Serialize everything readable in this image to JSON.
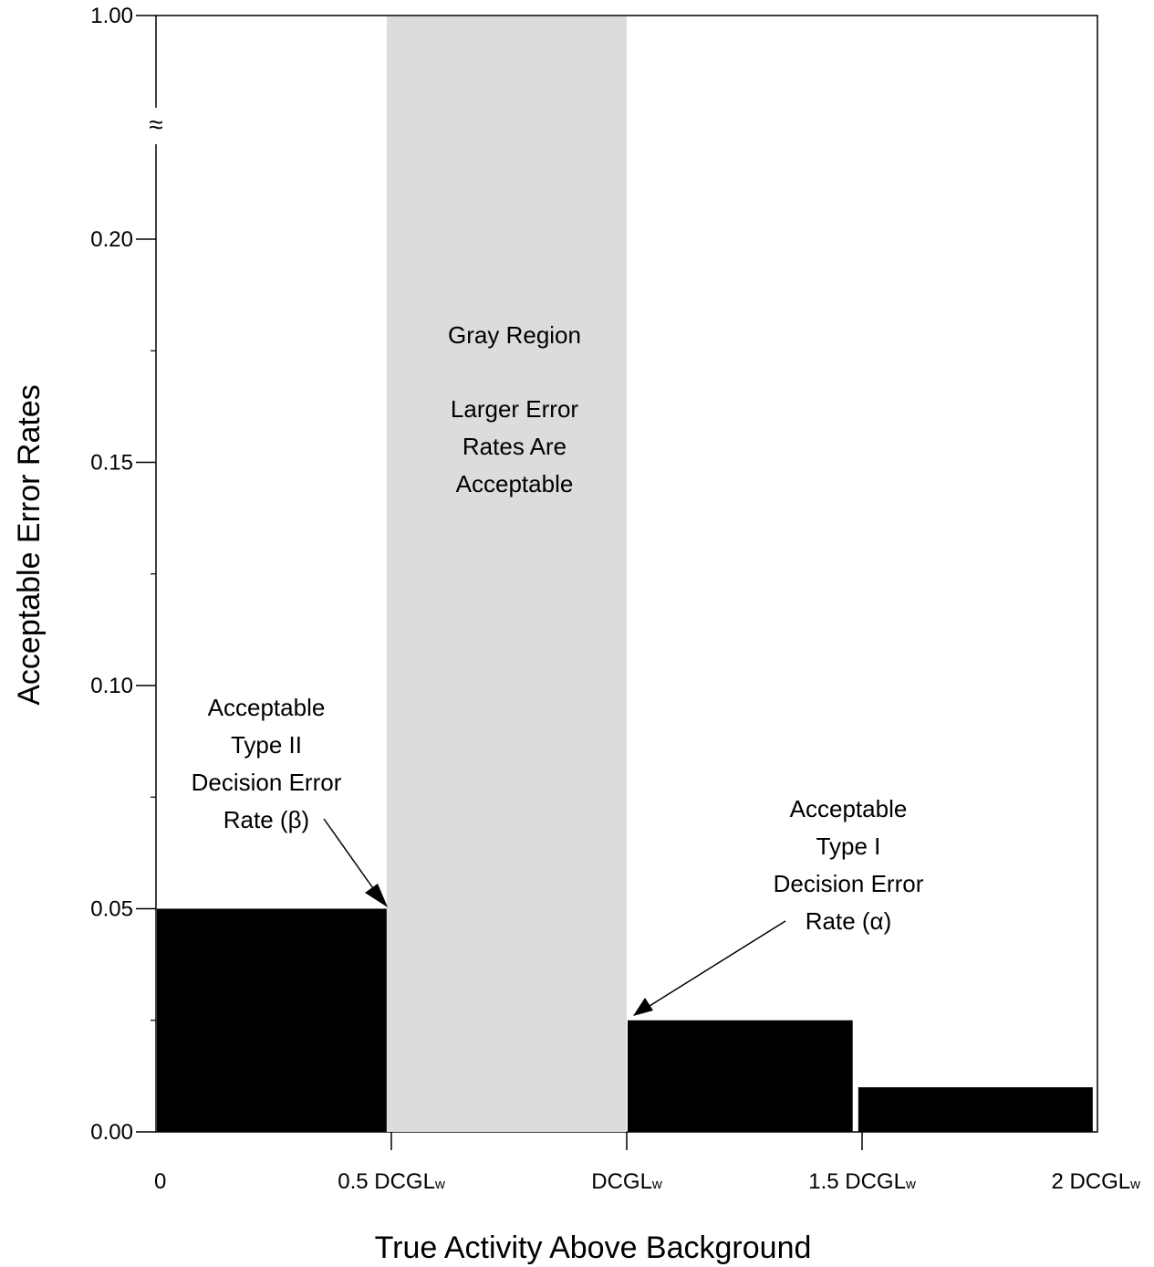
{
  "chart_data": {
    "type": "bar",
    "xlabel": "True Activity Above Background",
    "ylabel": "Acceptable Error Rates",
    "ylim": [
      0,
      0.25
    ],
    "y_break": {
      "symbol": "≈",
      "top_label": "1.00"
    },
    "y_ticks": [
      {
        "value": 0.0,
        "label": "0.00"
      },
      {
        "value": 0.05,
        "label": "0.05"
      },
      {
        "value": 0.1,
        "label": "0.10"
      },
      {
        "value": 0.15,
        "label": "0.15"
      },
      {
        "value": 0.2,
        "label": "0.20"
      }
    ],
    "x_ticks": [
      {
        "value": 0,
        "label": "0",
        "sub": ""
      },
      {
        "value": 0.5,
        "label": "0.5 DCGL",
        "sub": "W"
      },
      {
        "value": 1.0,
        "label": "DCGL",
        "sub": "W"
      },
      {
        "value": 1.5,
        "label": "1.5 DCGL",
        "sub": "W"
      },
      {
        "value": 2.0,
        "label": "2 DCGL",
        "sub": "W"
      }
    ],
    "bars": [
      {
        "x0": 0.0,
        "x1": 0.49,
        "value": 0.05
      },
      {
        "x0": 1.0,
        "x1": 1.48,
        "value": 0.025
      },
      {
        "x0": 1.49,
        "x1": 1.99,
        "value": 0.01
      }
    ],
    "gray_region": {
      "x0": 0.49,
      "x1": 1.0,
      "label": "Gray Region",
      "text": [
        "Larger Error",
        "Rates Are",
        "Acceptable"
      ]
    },
    "annotations": {
      "type2": [
        "Acceptable",
        "Type II",
        "Decision Error",
        "Rate (β)"
      ],
      "type1": [
        "Acceptable",
        "Type I",
        "Decision Error",
        "Rate (α)"
      ]
    }
  }
}
